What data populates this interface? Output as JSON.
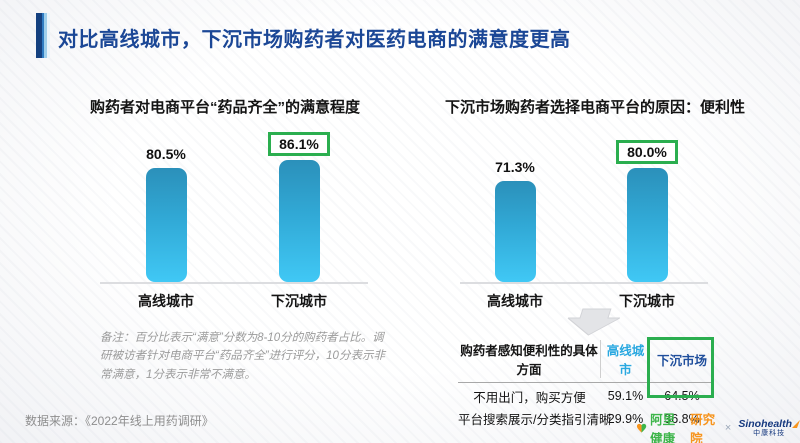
{
  "slide": {
    "title": "对比高线城市，下沉市场购药者对医药电商的满意度更高",
    "note": "备注：百分比表示“满意”分数为8-10分的购药者占比。调研被访者针对电商平台“药品齐全”进行评分，10分表示非常满意，1分表示非常不满意。",
    "source": "数据来源：《2022年线上用药调研》"
  },
  "colors": {
    "title-blue": "#1B4796",
    "bar-top": "#2B90BA",
    "bar-bottom": "#40C8F5",
    "highlight-green": "#2BAE4F",
    "table-cyan": "#29A8E0",
    "table-navy": "#1F4E9C",
    "ali-green": "#3DB54A",
    "ali-orange": "#F7941D",
    "sino-navy": "#16397F"
  },
  "chart_data": [
    {
      "type": "bar",
      "title": "购药者对电商平台“药品齐全”的满意程度",
      "categories": [
        "高线城市",
        "下沉城市"
      ],
      "values": [
        80.5,
        86.1
      ],
      "labels": [
        "80.5%",
        "86.1%"
      ],
      "highlight_index": 1,
      "unit": "%",
      "ylim": [
        0,
        100
      ],
      "grid": false,
      "legend": "none"
    },
    {
      "type": "bar",
      "title": "下沉市场购药者选择电商平台的原因：便利性",
      "categories": [
        "高线城市",
        "下沉城市"
      ],
      "values": [
        71.3,
        80.0
      ],
      "labels": [
        "71.3%",
        "80.0%"
      ],
      "highlight_index": 1,
      "unit": "%",
      "ylim": [
        0,
        100
      ],
      "grid": false,
      "legend": "none"
    },
    {
      "type": "table",
      "headers": [
        "购药者感知便利性的具体方面",
        "高线城市",
        "下沉市场"
      ],
      "rows": [
        [
          "不用出门，购买方便",
          "59.1%",
          "64.5%"
        ],
        [
          "平台搜索展示/分类指引清晰",
          "29.9%",
          "36.8%"
        ]
      ],
      "highlight_column": 2
    }
  ],
  "footer": {
    "ali_green_text": "阿里健康",
    "ali_orange_text": "研究院",
    "separator": "×",
    "sino_name": "Sinohealth",
    "sino_sub": "中康科技"
  }
}
